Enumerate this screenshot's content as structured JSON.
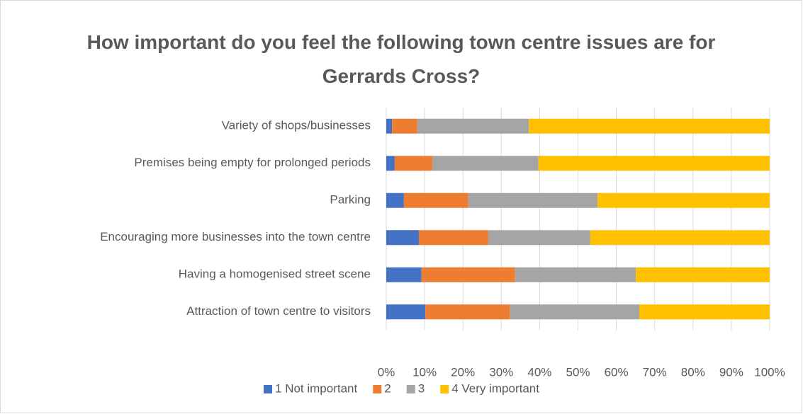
{
  "chart_data": {
    "type": "stacked_bar_horizontal",
    "title": "How important do you feel the following town centre issues are for Gerrards Cross?",
    "categories": [
      "Variety of shops/businesses",
      "Premises being empty for prolonged periods",
      "Parking",
      "Encouraging more businesses into the town centre",
      "Having a homogenised street scene",
      "Attraction of town centre to visitors"
    ],
    "series": [
      {
        "name": "1 Not important",
        "color": "#4472c4",
        "values": [
          1.5,
          2.2,
          4.6,
          8.5,
          9.2,
          10.2
        ]
      },
      {
        "name": "2",
        "color": "#ed7d31",
        "values": [
          6.6,
          9.8,
          16.8,
          18.1,
          24.4,
          22.1
        ]
      },
      {
        "name": "3",
        "color": "#a5a5a5",
        "values": [
          29.1,
          27.7,
          33.7,
          26.6,
          31.5,
          33.7
        ]
      },
      {
        "name": "4 Very important",
        "color": "#ffc000",
        "values": [
          62.8,
          60.3,
          44.9,
          46.8,
          34.9,
          34.0
        ]
      }
    ],
    "xlim": [
      0,
      100
    ],
    "xticks": [
      {
        "value": 0,
        "label": "0%"
      },
      {
        "value": 10,
        "label": "10%"
      },
      {
        "value": 20,
        "label": "20%"
      },
      {
        "value": 30,
        "label": "30%"
      },
      {
        "value": 40,
        "label": "40%"
      },
      {
        "value": 50,
        "label": "50%"
      },
      {
        "value": 60,
        "label": "60%"
      },
      {
        "value": 70,
        "label": "70%"
      },
      {
        "value": 80,
        "label": "80%"
      },
      {
        "value": 90,
        "label": "90%"
      },
      {
        "value": 100,
        "label": "100%"
      }
    ],
    "grid": true,
    "legend": "bottom"
  }
}
